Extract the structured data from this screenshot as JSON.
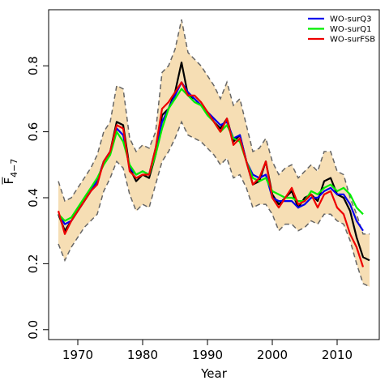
{
  "chart_data": {
    "type": "line",
    "title": "",
    "xlabel": "Year",
    "ylabel_main": "F",
    "ylabel_sub": "4−7",
    "xlim": [
      1965.5,
      2016.5
    ],
    "ylim": [
      -0.03,
      0.97
    ],
    "xticks": [
      1970,
      1980,
      1990,
      2000,
      2010
    ],
    "xtick_labels": [
      "1970",
      "1980",
      "1990",
      "2000",
      "2010"
    ],
    "yticks": [
      0.0,
      0.2,
      0.4,
      0.6,
      0.8
    ],
    "ytick_labels": [
      "0.0",
      "0.2",
      "0.4",
      "0.6",
      "0.8"
    ],
    "grid": false,
    "legend_position": "top-right",
    "legend": [
      {
        "label": "WO-surQ3",
        "color": "#0000ee"
      },
      {
        "label": "WO-surQ1",
        "color": "#00ee00"
      },
      {
        "label": "WO-surFSB",
        "color": "#ee0000"
      }
    ],
    "band_color": "#f6deb4",
    "band_edge_color": "#666666",
    "years": [
      1967,
      1968,
      1969,
      1970,
      1971,
      1972,
      1973,
      1974,
      1975,
      1976,
      1977,
      1978,
      1979,
      1980,
      1981,
      1982,
      1983,
      1984,
      1985,
      1986,
      1987,
      1988,
      1989,
      1990,
      1991,
      1992,
      1993,
      1994,
      1995,
      1996,
      1997,
      1998,
      1999,
      2000,
      2001,
      2002,
      2003,
      2004,
      2005,
      2006,
      2007,
      2008,
      2009,
      2010,
      2011,
      2012,
      2013,
      2014,
      2015
    ],
    "band_upper": [
      0.45,
      0.39,
      0.4,
      0.43,
      0.46,
      0.49,
      0.53,
      0.6,
      0.63,
      0.74,
      0.73,
      0.58,
      0.54,
      0.56,
      0.55,
      0.6,
      0.78,
      0.8,
      0.85,
      0.94,
      0.84,
      0.82,
      0.8,
      0.77,
      0.74,
      0.7,
      0.75,
      0.68,
      0.7,
      0.62,
      0.54,
      0.55,
      0.58,
      0.51,
      0.47,
      0.49,
      0.5,
      0.46,
      0.48,
      0.5,
      0.48,
      0.54,
      0.54,
      0.48,
      0.47,
      0.4,
      0.35,
      0.29,
      0.29
    ],
    "band_lower": [
      0.26,
      0.21,
      0.25,
      0.28,
      0.31,
      0.33,
      0.35,
      0.42,
      0.46,
      0.51,
      0.49,
      0.41,
      0.36,
      0.38,
      0.37,
      0.44,
      0.51,
      0.54,
      0.58,
      0.63,
      0.59,
      0.58,
      0.57,
      0.55,
      0.53,
      0.5,
      0.52,
      0.46,
      0.47,
      0.43,
      0.37,
      0.38,
      0.38,
      0.35,
      0.3,
      0.32,
      0.32,
      0.3,
      0.31,
      0.33,
      0.32,
      0.35,
      0.35,
      0.33,
      0.32,
      0.27,
      0.2,
      0.14,
      0.13
    ],
    "series": [
      {
        "name": "",
        "color": "#000000",
        "values": [
          0.35,
          0.3,
          0.33,
          0.36,
          0.39,
          0.42,
          0.45,
          0.51,
          0.54,
          0.63,
          0.62,
          0.49,
          0.45,
          0.47,
          0.46,
          0.53,
          0.65,
          0.67,
          0.72,
          0.81,
          0.71,
          0.7,
          0.68,
          0.66,
          0.63,
          0.61,
          0.64,
          0.57,
          0.59,
          0.51,
          0.44,
          0.45,
          0.51,
          0.41,
          0.38,
          0.4,
          0.42,
          0.37,
          0.4,
          0.41,
          0.39,
          0.45,
          0.46,
          0.41,
          0.4,
          0.36,
          0.28,
          0.22,
          0.21
        ]
      },
      {
        "name": "WO-surQ3",
        "color": "#0000ee",
        "values": [
          0.35,
          0.32,
          0.33,
          0.36,
          0.39,
          0.42,
          0.45,
          0.51,
          0.54,
          0.61,
          0.59,
          0.49,
          0.47,
          0.48,
          0.47,
          0.55,
          0.63,
          0.67,
          0.71,
          0.75,
          0.72,
          0.7,
          0.68,
          0.66,
          0.64,
          0.62,
          0.63,
          0.58,
          0.59,
          0.51,
          0.47,
          0.46,
          0.47,
          0.4,
          0.39,
          0.39,
          0.39,
          0.37,
          0.38,
          0.4,
          0.4,
          0.42,
          0.43,
          0.41,
          0.41,
          0.38,
          0.33,
          0.3,
          null
        ]
      },
      {
        "name": "WO-surQ1",
        "color": "#00ee00",
        "values": [
          0.35,
          0.33,
          0.34,
          0.37,
          0.4,
          0.43,
          0.46,
          0.5,
          0.53,
          0.6,
          0.57,
          0.5,
          0.47,
          0.48,
          0.47,
          0.53,
          0.61,
          0.67,
          0.7,
          0.73,
          0.71,
          0.69,
          0.68,
          0.65,
          0.63,
          0.6,
          0.62,
          0.58,
          0.57,
          0.51,
          0.46,
          0.45,
          0.46,
          0.42,
          0.41,
          0.4,
          0.4,
          0.39,
          0.39,
          0.42,
          0.41,
          0.43,
          0.44,
          0.42,
          0.43,
          0.41,
          0.37,
          0.35,
          null
        ]
      },
      {
        "name": "WO-surFSB",
        "color": "#ee0000",
        "values": [
          0.36,
          0.29,
          0.33,
          0.36,
          0.39,
          0.42,
          0.44,
          0.51,
          0.54,
          0.62,
          0.61,
          0.48,
          0.46,
          0.47,
          0.47,
          0.55,
          0.67,
          0.69,
          0.72,
          0.75,
          0.71,
          0.71,
          0.69,
          0.66,
          0.63,
          0.6,
          0.64,
          0.56,
          0.58,
          0.51,
          0.44,
          0.46,
          0.51,
          0.4,
          0.37,
          0.4,
          0.43,
          0.38,
          0.39,
          0.41,
          0.37,
          0.41,
          0.42,
          0.37,
          0.35,
          0.29,
          0.25,
          0.19,
          null
        ]
      }
    ]
  }
}
